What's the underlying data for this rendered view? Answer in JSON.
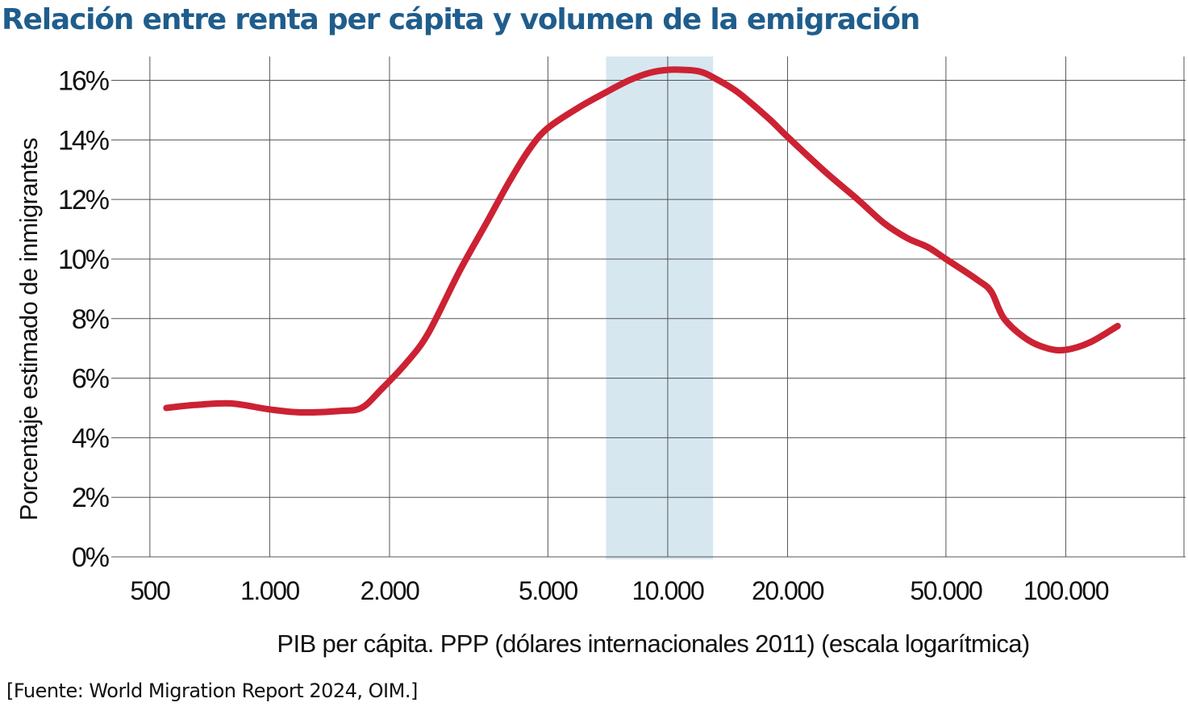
{
  "chart_data": {
    "type": "line",
    "title": "Relación entre renta per cápita y volumen de la emigración",
    "xlabel": "PIB per cápita. PPP (dólares internacionales 2011) (escala logarítmica)",
    "ylabel": "Porcentaje estimado de inmigrantes",
    "x_scale": "log",
    "xlim": [
      400,
      200000
    ],
    "ylim": [
      0,
      16.8
    ],
    "x_ticks": [
      {
        "value": 500,
        "label": "500"
      },
      {
        "value": 1000,
        "label": "1.000"
      },
      {
        "value": 2000,
        "label": "2.000"
      },
      {
        "value": 5000,
        "label": "5.000"
      },
      {
        "value": 10000,
        "label": "10.000"
      },
      {
        "value": 20000,
        "label": "20.000"
      },
      {
        "value": 50000,
        "label": "50.000"
      },
      {
        "value": 100000,
        "label": "100.000"
      }
    ],
    "y_ticks": [
      {
        "value": 0,
        "label": "0%"
      },
      {
        "value": 2,
        "label": "2%"
      },
      {
        "value": 4,
        "label": "4%"
      },
      {
        "value": 6,
        "label": "6%"
      },
      {
        "value": 8,
        "label": "8%"
      },
      {
        "value": 10,
        "label": "10%"
      },
      {
        "value": 12,
        "label": "12%"
      },
      {
        "value": 14,
        "label": "14%"
      },
      {
        "value": 16,
        "label": "16%"
      }
    ],
    "highlight_band": {
      "x_start": 7000,
      "x_end": 13000
    },
    "grid": true,
    "series": [
      {
        "color": "#cc2233",
        "points": [
          [
            550,
            5.0
          ],
          [
            650,
            5.1
          ],
          [
            800,
            5.15
          ],
          [
            1000,
            4.95
          ],
          [
            1200,
            4.85
          ],
          [
            1500,
            4.9
          ],
          [
            1700,
            5.0
          ],
          [
            1900,
            5.6
          ],
          [
            2200,
            6.5
          ],
          [
            2500,
            7.5
          ],
          [
            3000,
            9.6
          ],
          [
            3500,
            11.2
          ],
          [
            4000,
            12.6
          ],
          [
            4500,
            13.7
          ],
          [
            5000,
            14.4
          ],
          [
            6000,
            15.1
          ],
          [
            7000,
            15.6
          ],
          [
            8000,
            16.0
          ],
          [
            9000,
            16.25
          ],
          [
            10000,
            16.35
          ],
          [
            11000,
            16.35
          ],
          [
            12000,
            16.3
          ],
          [
            13000,
            16.1
          ],
          [
            15000,
            15.6
          ],
          [
            18000,
            14.7
          ],
          [
            20000,
            14.1
          ],
          [
            25000,
            12.9
          ],
          [
            30000,
            12.0
          ],
          [
            35000,
            11.2
          ],
          [
            40000,
            10.7
          ],
          [
            45000,
            10.4
          ],
          [
            50000,
            10.0
          ],
          [
            60000,
            9.3
          ],
          [
            65000,
            8.9
          ],
          [
            70000,
            8.0
          ],
          [
            80000,
            7.3
          ],
          [
            90000,
            7.0
          ],
          [
            100000,
            6.95
          ],
          [
            115000,
            7.2
          ],
          [
            135000,
            7.75
          ]
        ]
      }
    ]
  },
  "source": "[Fuente: World Migration Report 2024, OIM.]",
  "colors": {
    "title": "#1f5d8c",
    "line": "#cc2233",
    "band": "#d6e7f0",
    "grid": "#555555",
    "text": "#111111"
  }
}
